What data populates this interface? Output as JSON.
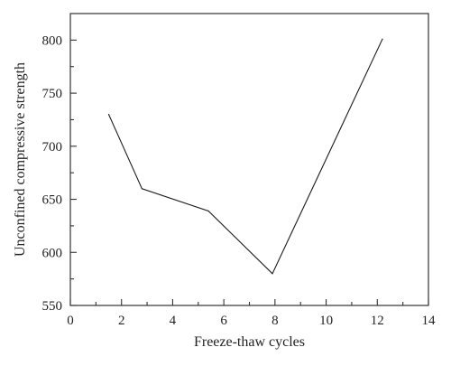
{
  "chart_data": {
    "type": "line",
    "xlabel": "Freeze-thaw cycles",
    "ylabel": "Unconfined compressive strength",
    "xlim": [
      0,
      14
    ],
    "ylim": [
      550,
      825
    ],
    "x_ticks": [
      0,
      2,
      4,
      6,
      8,
      10,
      12,
      14
    ],
    "x_minor_ticks": [
      1,
      3,
      5,
      7,
      9,
      11,
      13
    ],
    "y_ticks": [
      550,
      600,
      650,
      700,
      750,
      800
    ],
    "y_minor_ticks": [
      575,
      625,
      675,
      725,
      775
    ],
    "grid": false,
    "legend": "none",
    "series": [
      {
        "x": [
          1.5,
          2.8,
          5.4,
          7.9,
          12.2
        ],
        "y": [
          730,
          660,
          639,
          580,
          801
        ],
        "color": "#1a1a1a"
      }
    ]
  }
}
